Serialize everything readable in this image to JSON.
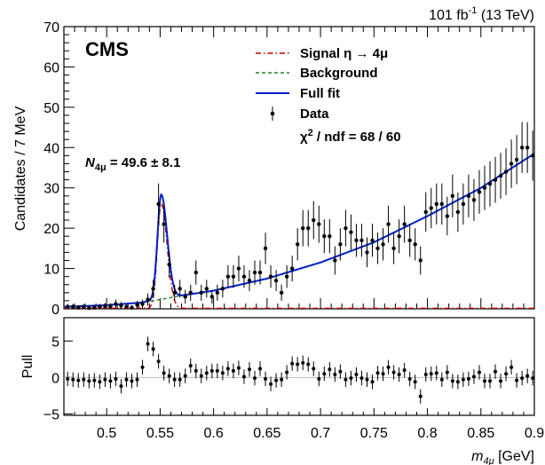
{
  "chart_data": [
    {
      "type": "scatter",
      "panel": "main",
      "experiment_label": "CMS",
      "lumi_label": "101 fb",
      "lumi_sup": "-1",
      "lumi_energy": " (13 TeV)",
      "ylabel": "Candidates / 7 MeV",
      "xlim": [
        0.46,
        0.9
      ],
      "ylim": [
        0,
        70
      ],
      "yticks": [
        "0",
        "10",
        "20",
        "30",
        "40",
        "50",
        "60",
        "70"
      ],
      "annotation": {
        "n_symbol": "N",
        "n_sub": "4μ",
        "n_text": " = 49.6 ± 8.1"
      },
      "legend": {
        "signal": "Signal η → 4μ",
        "background": "Background",
        "full_fit": "Full fit",
        "data": "Data",
        "chi2_symbol": "χ",
        "chi2_sup": "2",
        "chi2_text": " / ndf = 68 / 60"
      },
      "fit": {
        "signal_peak_mass": 0.551,
        "signal_peak_height": 26,
        "background_curve": [
          [
            0.46,
            0.5
          ],
          [
            0.5,
            0.9
          ],
          [
            0.53,
            1.5
          ],
          [
            0.55,
            2.3
          ],
          [
            0.57,
            3.3
          ],
          [
            0.6,
            4.5
          ],
          [
            0.65,
            7.5
          ],
          [
            0.7,
            11.5
          ],
          [
            0.75,
            16.5
          ],
          [
            0.8,
            23.0
          ],
          [
            0.85,
            30.0
          ],
          [
            0.9,
            38.5
          ]
        ],
        "full_fit_peak": 27
      },
      "data_points": [
        {
          "x": 0.4635,
          "y": 0.5,
          "err": 0.7
        },
        {
          "x": 0.4685,
          "y": 0.5,
          "err": 0.7
        },
        {
          "x": 0.4735,
          "y": 0.3,
          "err": 0.6
        },
        {
          "x": 0.4785,
          "y": 0.5,
          "err": 0.7
        },
        {
          "x": 0.4835,
          "y": 0.2,
          "err": 0.5
        },
        {
          "x": 0.4885,
          "y": 0.3,
          "err": 0.6
        },
        {
          "x": 0.4935,
          "y": 0.5,
          "err": 0.7
        },
        {
          "x": 0.4985,
          "y": 0.7,
          "err": 0.8
        },
        {
          "x": 0.5035,
          "y": 0.6,
          "err": 0.8
        },
        {
          "x": 0.5085,
          "y": 1.2,
          "err": 1.1
        },
        {
          "x": 0.5135,
          "y": 0.8,
          "err": 0.9
        },
        {
          "x": 0.5185,
          "y": 0.5,
          "err": 0.7
        },
        {
          "x": 0.5235,
          "y": 0.3,
          "err": 0.6
        },
        {
          "x": 0.5285,
          "y": 1.0,
          "err": 1.0
        },
        {
          "x": 0.5335,
          "y": 1.2,
          "err": 1.1
        },
        {
          "x": 0.5385,
          "y": 2.3,
          "err": 1.5
        },
        {
          "x": 0.5435,
          "y": 5.0,
          "err": 2.2
        },
        {
          "x": 0.5485,
          "y": 26.0,
          "err": 5.1
        },
        {
          "x": 0.5535,
          "y": 21.0,
          "err": 4.6
        },
        {
          "x": 0.5585,
          "y": 11.0,
          "err": 3.3
        },
        {
          "x": 0.5635,
          "y": 4.0,
          "err": 2.0
        },
        {
          "x": 0.5685,
          "y": 5.0,
          "err": 2.2
        },
        {
          "x": 0.5735,
          "y": 3.0,
          "err": 1.7
        },
        {
          "x": 0.5785,
          "y": 4.0,
          "err": 2.0
        },
        {
          "x": 0.5835,
          "y": 9.0,
          "err": 3.0
        },
        {
          "x": 0.5885,
          "y": 4.0,
          "err": 2.0
        },
        {
          "x": 0.5935,
          "y": 5.0,
          "err": 2.2
        },
        {
          "x": 0.5985,
          "y": 3.0,
          "err": 1.7
        },
        {
          "x": 0.6035,
          "y": 4.0,
          "err": 2.0
        },
        {
          "x": 0.6085,
          "y": 5.0,
          "err": 2.2
        },
        {
          "x": 0.6135,
          "y": 8.0,
          "err": 2.8
        },
        {
          "x": 0.6185,
          "y": 8.0,
          "err": 2.8
        },
        {
          "x": 0.6235,
          "y": 10.0,
          "err": 3.2
        },
        {
          "x": 0.6285,
          "y": 8.0,
          "err": 2.8
        },
        {
          "x": 0.6335,
          "y": 7.0,
          "err": 2.6
        },
        {
          "x": 0.6385,
          "y": 9.0,
          "err": 3.0
        },
        {
          "x": 0.6435,
          "y": 9.0,
          "err": 3.0
        },
        {
          "x": 0.6485,
          "y": 15.0,
          "err": 3.9
        },
        {
          "x": 0.6535,
          "y": 8.0,
          "err": 2.8
        },
        {
          "x": 0.6585,
          "y": 7.0,
          "err": 2.6
        },
        {
          "x": 0.6635,
          "y": 4.0,
          "err": 2.0
        },
        {
          "x": 0.6685,
          "y": 8.0,
          "err": 2.8
        },
        {
          "x": 0.6735,
          "y": 10.0,
          "err": 3.2
        },
        {
          "x": 0.6785,
          "y": 16.0,
          "err": 4.0
        },
        {
          "x": 0.6835,
          "y": 20.0,
          "err": 4.5
        },
        {
          "x": 0.6885,
          "y": 20.0,
          "err": 4.5
        },
        {
          "x": 0.6935,
          "y": 22.0,
          "err": 4.7
        },
        {
          "x": 0.6985,
          "y": 21.0,
          "err": 4.6
        },
        {
          "x": 0.7035,
          "y": 18.0,
          "err": 4.2
        },
        {
          "x": 0.7085,
          "y": 18.0,
          "err": 4.2
        },
        {
          "x": 0.7135,
          "y": 12.0,
          "err": 3.5
        },
        {
          "x": 0.7185,
          "y": 16.0,
          "err": 4.0
        },
        {
          "x": 0.7235,
          "y": 20.0,
          "err": 4.5
        },
        {
          "x": 0.7285,
          "y": 19.0,
          "err": 4.4
        },
        {
          "x": 0.7335,
          "y": 17.0,
          "err": 4.1
        },
        {
          "x": 0.7385,
          "y": 17.0,
          "err": 4.1
        },
        {
          "x": 0.7435,
          "y": 14.0,
          "err": 3.7
        },
        {
          "x": 0.7485,
          "y": 17.0,
          "err": 4.1
        },
        {
          "x": 0.7535,
          "y": 15.0,
          "err": 3.9
        },
        {
          "x": 0.7585,
          "y": 16.0,
          "err": 4.0
        },
        {
          "x": 0.7635,
          "y": 21.0,
          "err": 4.6
        },
        {
          "x": 0.7685,
          "y": 15.0,
          "err": 3.9
        },
        {
          "x": 0.7735,
          "y": 18.0,
          "err": 4.2
        },
        {
          "x": 0.7785,
          "y": 21.0,
          "err": 4.6
        },
        {
          "x": 0.7835,
          "y": 17.0,
          "err": 4.1
        },
        {
          "x": 0.7885,
          "y": 16.0,
          "err": 4.0
        },
        {
          "x": 0.7935,
          "y": 12.0,
          "err": 3.5
        },
        {
          "x": 0.7985,
          "y": 24.0,
          "err": 4.9
        },
        {
          "x": 0.8035,
          "y": 25.0,
          "err": 5.0
        },
        {
          "x": 0.8085,
          "y": 26.0,
          "err": 5.1
        },
        {
          "x": 0.8135,
          "y": 26.0,
          "err": 5.1
        },
        {
          "x": 0.8185,
          "y": 23.0,
          "err": 4.8
        },
        {
          "x": 0.8235,
          "y": 28.0,
          "err": 5.3
        },
        {
          "x": 0.8285,
          "y": 24.0,
          "err": 4.9
        },
        {
          "x": 0.8335,
          "y": 26.0,
          "err": 5.1
        },
        {
          "x": 0.8385,
          "y": 28.0,
          "err": 5.3
        },
        {
          "x": 0.8435,
          "y": 27.0,
          "err": 5.2
        },
        {
          "x": 0.8485,
          "y": 29.0,
          "err": 5.4
        },
        {
          "x": 0.8535,
          "y": 30.0,
          "err": 5.5
        },
        {
          "x": 0.8585,
          "y": 31.0,
          "err": 5.6
        },
        {
          "x": 0.8635,
          "y": 32.0,
          "err": 5.7
        },
        {
          "x": 0.8685,
          "y": 33.0,
          "err": 5.7
        },
        {
          "x": 0.8735,
          "y": 34.0,
          "err": 5.8
        },
        {
          "x": 0.8785,
          "y": 36.0,
          "err": 6.0
        },
        {
          "x": 0.8835,
          "y": 37.0,
          "err": 6.1
        },
        {
          "x": 0.8885,
          "y": 40.0,
          "err": 6.3
        },
        {
          "x": 0.8935,
          "y": 40.0,
          "err": 6.3
        },
        {
          "x": 0.8985,
          "y": 38.0,
          "err": 6.2
        }
      ]
    },
    {
      "type": "scatter",
      "panel": "pull",
      "ylabel": "Pull",
      "xlabel_symbol": "m",
      "xlabel_sub": "4μ",
      "xlabel_unit": " [GeV]",
      "xlim": [
        0.46,
        0.9
      ],
      "ylim": [
        -5.2,
        8.2
      ],
      "yticks": [
        "-5",
        "0",
        "5"
      ],
      "xticks": [
        "0.5",
        "0.55",
        "0.6",
        "0.65",
        "0.7",
        "0.75",
        "0.8",
        "0.85",
        "0.9"
      ],
      "pulls": [
        -0.2,
        -0.3,
        -0.4,
        -0.3,
        -0.5,
        -0.4,
        -0.6,
        -0.3,
        -0.5,
        -0.2,
        -1.2,
        -0.3,
        -0.5,
        -0.3,
        1.4,
        4.6,
        3.9,
        2.2,
        0.6,
        0.2,
        -0.3,
        -0.3,
        0.2,
        1.6,
        0.9,
        0.2,
        0.6,
        0.9,
        0.9,
        0.6,
        1.2,
        0.9,
        1.3,
        0.1,
        1.1,
        -0.1,
        1.2,
        -0.2,
        -0.9,
        -0.4,
        -0.3,
        0.7,
        1.9,
        1.8,
        2.0,
        1.8,
        1.2,
        -0.2,
        0.5,
        1.1,
        0.4,
        0.8,
        -0.3,
        -0.1,
        0.4,
        -0.1,
        -0.3,
        -0.6,
        0.6,
        0.5,
        1.4,
        0.7,
        0.4,
        1.0,
        -0.2,
        -0.6,
        -2.6,
        0.4,
        0.5,
        0.6,
        -0.3,
        0.7,
        -0.5,
        -0.6,
        -0.3,
        -0.2,
        0.1,
        0.7,
        -0.5,
        -0.5,
        0.8,
        -0.5,
        0.5,
        1.4,
        -0.4,
        -0.1,
        0.2,
        -0.1
      ]
    }
  ]
}
